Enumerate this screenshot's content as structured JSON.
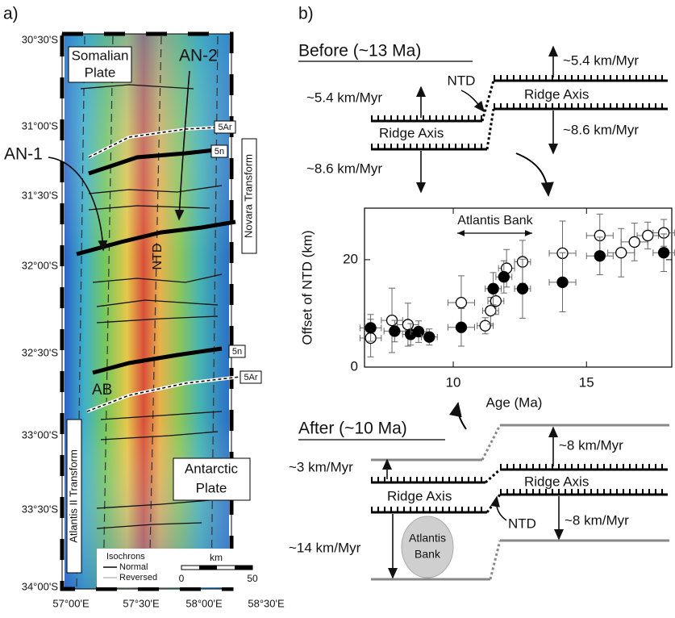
{
  "panel_a": {
    "label": "a)",
    "lat_labels": [
      "30°30'S",
      "31°00'S",
      "31°30'S",
      "32°00'S",
      "32°30'S",
      "33°00'S",
      "33°30'S",
      "34°00'S"
    ],
    "lon_labels": [
      "57°00'E",
      "57°30'E",
      "58°00'E",
      "58°30'E"
    ],
    "somalian_plate": [
      "Somalian",
      "Plate"
    ],
    "an2": "AN-2",
    "an1": "AN-1",
    "iso_5ar_top": "5Ar",
    "iso_5n_top": "5n",
    "novara": "Novara Transform",
    "ntd": "NTD",
    "iso_5n_bottom": "5n",
    "iso_5ar_bottom": "5Ar",
    "ab": "AB",
    "atlantis_transform": "Atlantis II Transform",
    "antarctic_plate": [
      "Antarctic",
      "Plate"
    ],
    "legend_title": "Isochrons",
    "legend_normal": "Normal",
    "legend_reversed": "Reversed",
    "scale_unit": "km",
    "scale_start": "0",
    "scale_end": "50"
  },
  "panel_b": {
    "label": "b)",
    "before": {
      "title": "Before (~13 Ma)",
      "rate_up_right": "~5.4 km/Myr",
      "rate_up_left": "~5.4 km/Myr",
      "ntd": "NTD",
      "ridge_right": "Ridge Axis",
      "ridge_left": "Ridge Axis",
      "rate_down_right": "~8.6 km/Myr",
      "rate_down_left": "~8.6 km/Myr"
    },
    "after": {
      "title": "After (~10 Ma)",
      "rate_up_right": "~8 km/Myr",
      "rate_up_left": "~3 km/Myr",
      "ridge_left": "Ridge Axis",
      "ridge_right": "Ridge Axis",
      "ntd": "NTD",
      "rate_down_right": "~8 km/Myr",
      "rate_down_left": "~14 km/Myr",
      "bank": [
        "Atlantis",
        "Bank"
      ]
    }
  },
  "chart_data": {
    "type": "scatter",
    "x_label": "Age (Ma)",
    "y_label": "Offset of NTD (km)",
    "annotation": "Atlantis Bank",
    "xlim": [
      6.67,
      18.2
    ],
    "ylim": [
      0,
      29.6
    ],
    "xticks": [
      10,
      15
    ],
    "yticks": [
      0,
      20
    ],
    "series": [
      {
        "color": "#000000",
        "filled": false,
        "x": [
          6.9,
          7.7,
          8.3,
          10.3,
          11.2,
          11.4,
          11.6,
          12.0,
          12.6,
          14.1,
          15.5,
          16.3,
          16.8,
          17.3,
          17.9
        ],
        "values": [
          5.4,
          8.7,
          7.9,
          12.0,
          7.7,
          10.5,
          12.3,
          18.4,
          19.6,
          21.2,
          24.5,
          21.3,
          23.3,
          24.5,
          25.0
        ],
        "xerr": [
          0.4,
          0.4,
          0.4,
          0.5,
          0.3,
          0.3,
          0.3,
          0.3,
          0.3,
          0.5,
          0.5,
          0.5,
          0.5,
          0.4,
          0.4
        ],
        "yerr": [
          3.5,
          6.0,
          4.0,
          5.0,
          1.5,
          2.5,
          2.5,
          3.5,
          4.0,
          6.0,
          4.0,
          4.5,
          3.5,
          2.5,
          2.5
        ]
      },
      {
        "color": "#000000",
        "filled": true,
        "x": [
          6.9,
          7.8,
          8.4,
          8.7,
          9.1,
          10.3,
          11.5,
          11.9,
          12.6,
          14.1,
          15.5,
          17.9
        ],
        "values": [
          7.3,
          6.7,
          6.1,
          6.6,
          5.6,
          7.4,
          14.6,
          16.8,
          14.6,
          15.8,
          20.7,
          21.3
        ],
        "xerr": [
          0.4,
          0.4,
          0.3,
          0.3,
          0.3,
          0.5,
          0.3,
          0.3,
          0.3,
          0.5,
          0.5,
          0.4
        ],
        "yerr": [
          2.5,
          2.0,
          2.0,
          2.0,
          1.5,
          3.5,
          3.0,
          3.0,
          5.5,
          5.5,
          3.5,
          3.5
        ]
      }
    ]
  }
}
